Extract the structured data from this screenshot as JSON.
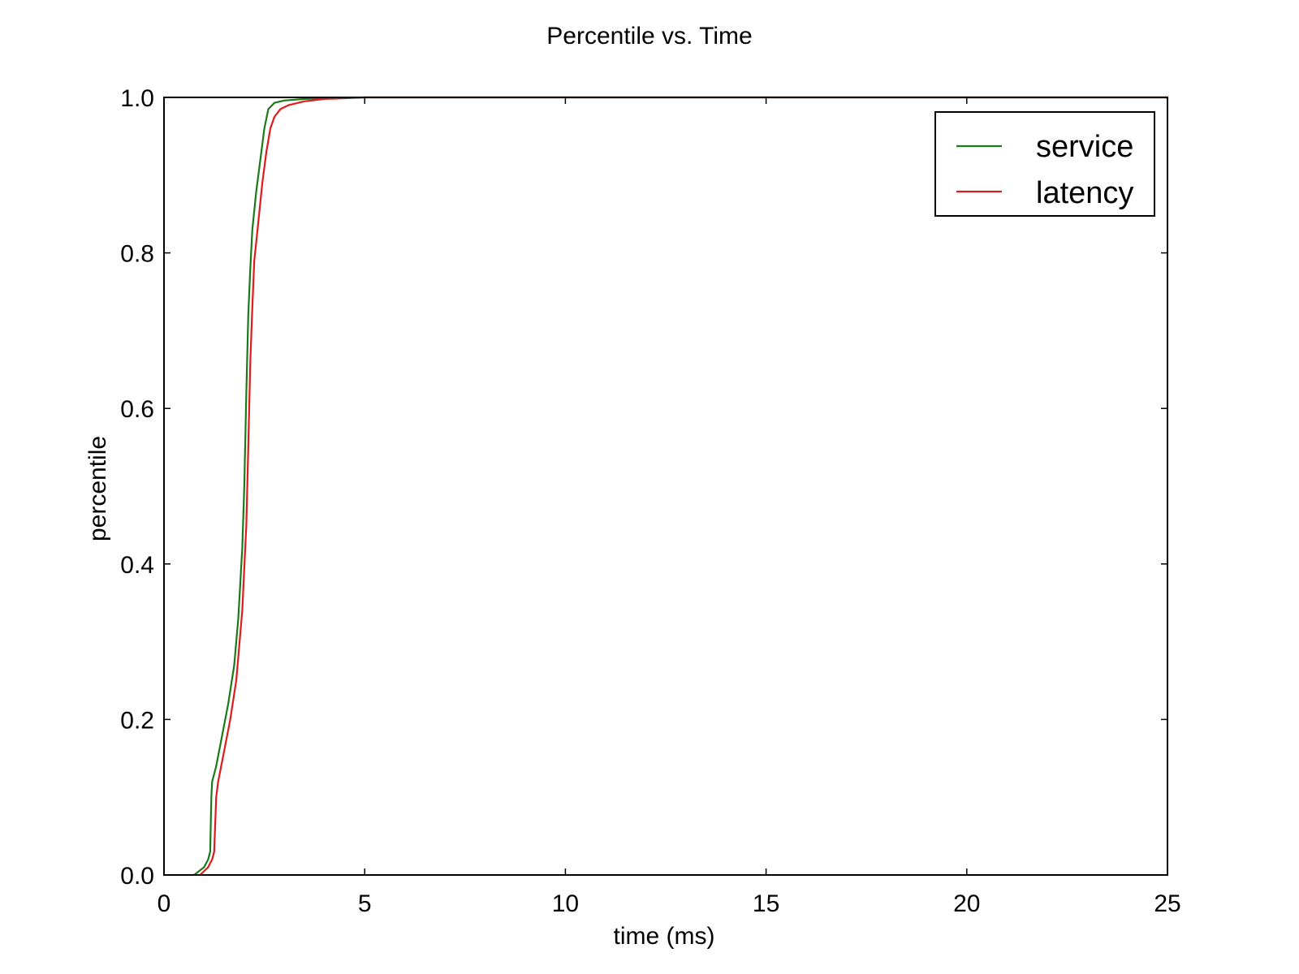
{
  "chart_data": {
    "type": "line",
    "title": "Percentile vs. Time",
    "xlabel": "time (ms)",
    "ylabel": "percentile",
    "xlim": [
      0,
      25
    ],
    "ylim": [
      0.0,
      1.0
    ],
    "xticks": [
      "0",
      "5",
      "10",
      "15",
      "20",
      "25"
    ],
    "yticks": [
      "0.0",
      "0.2",
      "0.4",
      "0.6",
      "0.8",
      "1.0"
    ],
    "grid": false,
    "legend_position": "top-right",
    "series": [
      {
        "name": "service",
        "color": "#1a7a1a",
        "x": [
          0.75,
          1.0,
          1.1,
          1.15,
          1.18,
          1.2,
          1.3,
          1.45,
          1.6,
          1.75,
          1.85,
          1.95,
          2.0,
          2.05,
          2.1,
          2.15,
          2.2,
          2.3,
          2.4,
          2.5,
          2.6,
          2.75,
          3.0,
          3.5,
          4.0,
          5.0,
          10.0,
          15.0,
          20.0,
          25.0
        ],
        "y": [
          0.0,
          0.01,
          0.02,
          0.03,
          0.1,
          0.12,
          0.14,
          0.18,
          0.22,
          0.27,
          0.33,
          0.42,
          0.5,
          0.62,
          0.72,
          0.78,
          0.83,
          0.88,
          0.92,
          0.96,
          0.985,
          0.993,
          0.996,
          0.998,
          0.999,
          1.0,
          1.0,
          1.0,
          1.0,
          1.0
        ]
      },
      {
        "name": "latency",
        "color": "#e01b1b",
        "x": [
          0.9,
          1.1,
          1.2,
          1.25,
          1.3,
          1.35,
          1.5,
          1.65,
          1.8,
          1.95,
          2.05,
          2.1,
          2.15,
          2.2,
          2.25,
          2.35,
          2.45,
          2.55,
          2.65,
          2.75,
          2.9,
          3.1,
          3.5,
          4.0,
          4.5,
          5.0,
          10.0,
          15.0,
          20.0,
          25.0
        ],
        "y": [
          0.0,
          0.01,
          0.02,
          0.03,
          0.1,
          0.12,
          0.16,
          0.2,
          0.25,
          0.34,
          0.45,
          0.55,
          0.66,
          0.73,
          0.79,
          0.84,
          0.89,
          0.93,
          0.96,
          0.975,
          0.985,
          0.99,
          0.995,
          0.998,
          0.999,
          1.0,
          1.0,
          1.0,
          1.0,
          1.0
        ]
      }
    ]
  }
}
